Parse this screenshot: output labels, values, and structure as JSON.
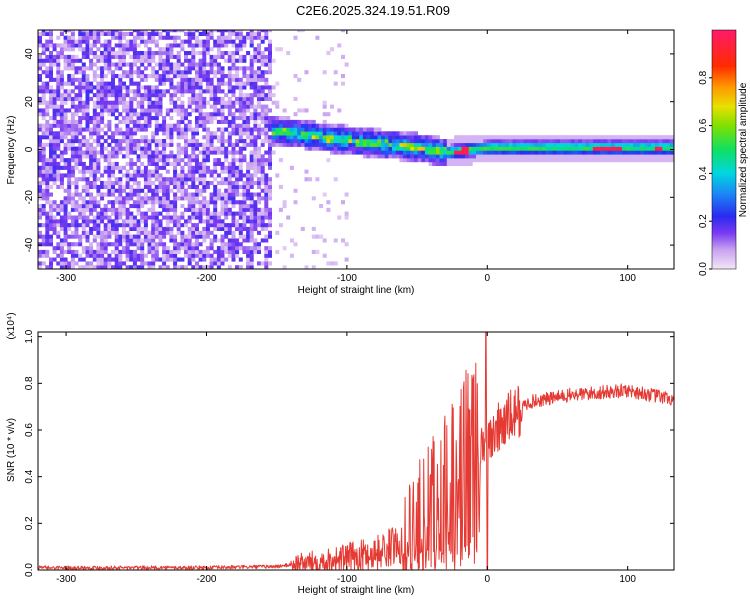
{
  "title": "C2E6.2025.324.19.51.R09",
  "chart_data": [
    {
      "type": "heatmap",
      "title": "C2E6.2025.324.19.51.R09",
      "xlabel": "Height of straight line (km)",
      "ylabel": "Frequency (Hz)",
      "xlim": [
        -320,
        133
      ],
      "ylim": [
        -50,
        50
      ],
      "x_ticks": [
        -300,
        -200,
        -100,
        0,
        100
      ],
      "y_ticks": [
        -40,
        -20,
        0,
        20,
        40
      ],
      "colorbar": {
        "label": "Normalized spectral amplitude",
        "range": [
          0,
          1
        ],
        "ticks": [
          0.0,
          0.2,
          0.4,
          0.6,
          0.8
        ]
      },
      "regions": [
        {
          "name": "noise",
          "x": [
            -320,
            -155
          ],
          "level": 0.1
        },
        {
          "name": "sparse noise",
          "x": [
            -155,
            -100
          ],
          "level": 0.03
        },
        {
          "name": "signal band",
          "x": [
            -155,
            133
          ],
          "freq_center": 0,
          "peak_level": 1.0
        }
      ],
      "signal_centerline": [
        {
          "x": -150,
          "y": 7
        },
        {
          "x": -100,
          "y": 3
        },
        {
          "x": -50,
          "y": 0
        },
        {
          "x": -30,
          "y": -2
        },
        {
          "x": 0,
          "y": 0
        },
        {
          "x": 133,
          "y": 0
        }
      ]
    },
    {
      "type": "line",
      "xlabel": "Height of straight line (km)",
      "ylabel": "SNR (10 * v/v)",
      "y_scale_label": "(x10⁴)",
      "xlim": [
        -320,
        133
      ],
      "ylim": [
        0,
        1.02
      ],
      "x_ticks": [
        -300,
        -200,
        -100,
        0,
        100
      ],
      "y_ticks": [
        0.0,
        0.2,
        0.4,
        0.6,
        0.8,
        1.0
      ],
      "series": [
        {
          "name": "SNR",
          "color": "#e53a33",
          "points": [
            {
              "x": -320,
              "y": 0.01
            },
            {
              "x": -200,
              "y": 0.01
            },
            {
              "x": -150,
              "y": 0.015
            },
            {
              "x": -130,
              "y": 0.03
            },
            {
              "x": -100,
              "y": 0.05
            },
            {
              "x": -80,
              "y": 0.07
            },
            {
              "x": -60,
              "y": 0.12
            },
            {
              "x": -40,
              "y": 0.25
            },
            {
              "x": -20,
              "y": 0.45
            },
            {
              "x": 0,
              "y": 0.55
            },
            {
              "x": 10,
              "y": 0.62
            },
            {
              "x": 30,
              "y": 0.72
            },
            {
              "x": 60,
              "y": 0.75
            },
            {
              "x": 100,
              "y": 0.77
            },
            {
              "x": 133,
              "y": 0.73
            }
          ]
        }
      ]
    }
  ]
}
